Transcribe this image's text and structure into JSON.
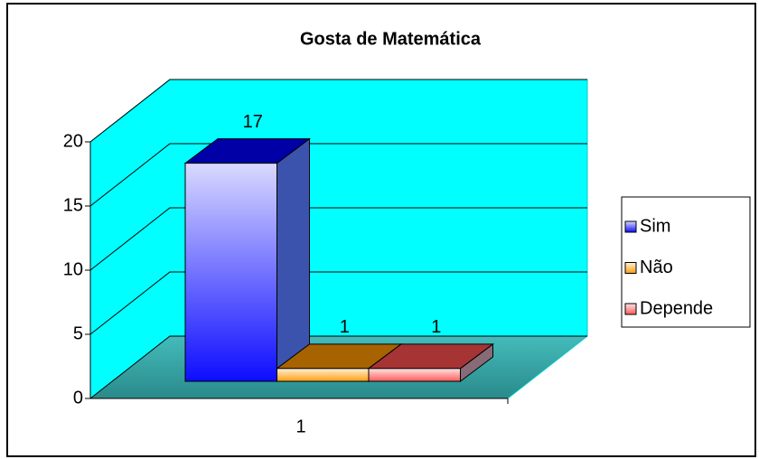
{
  "chart_data": {
    "type": "bar3d",
    "title": "Gosta de Matemática",
    "categories": [
      "1"
    ],
    "series": [
      {
        "name": "Sim",
        "color": "#0000ff",
        "values": [
          17
        ]
      },
      {
        "name": "Não",
        "color": "#ff9900",
        "values": [
          1
        ]
      },
      {
        "name": "Depende",
        "color": "#ff5050",
        "values": [
          1
        ]
      }
    ],
    "ylim": [
      0,
      20
    ],
    "yticks": [
      0,
      5,
      10,
      15,
      20
    ],
    "grid": true,
    "legend": "right"
  }
}
